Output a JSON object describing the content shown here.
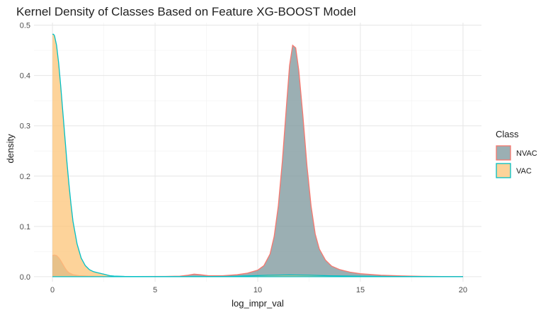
{
  "chart_data": {
    "type": "area",
    "title": "Kernel Density of Classes Based on Feature XG-BOOST Model",
    "xlabel": "log_impr_val",
    "ylabel": "density",
    "xlim": [
      -0.9,
      20.9
    ],
    "ylim": [
      -0.01,
      0.505
    ],
    "x_ticks": [
      0,
      5,
      10,
      15,
      20
    ],
    "y_ticks": [
      0.0,
      0.1,
      0.2,
      0.3,
      0.4,
      0.5
    ],
    "x_tick_labels": [
      "0",
      "5",
      "10",
      "15",
      "20"
    ],
    "y_tick_labels": [
      "0.0",
      "0.1",
      "0.2",
      "0.3",
      "0.4",
      "0.5"
    ],
    "grid": true,
    "legend": {
      "title": "Class",
      "position": "right"
    },
    "series": [
      {
        "name": "NVAC",
        "fill": "#7f999d",
        "line": "#f8766d",
        "points": [
          [
            0,
            0.042
          ],
          [
            0.1,
            0.043
          ],
          [
            0.2,
            0.042
          ],
          [
            0.3,
            0.038
          ],
          [
            0.4,
            0.032
          ],
          [
            0.5,
            0.025
          ],
          [
            0.6,
            0.018
          ],
          [
            0.7,
            0.012
          ],
          [
            0.8,
            0.008
          ],
          [
            1.0,
            0.004
          ],
          [
            1.3,
            0.002
          ],
          [
            1.8,
            0.001
          ],
          [
            2.5,
            0.0005
          ],
          [
            4,
            0.0003
          ],
          [
            5.5,
            0.0005
          ],
          [
            6.2,
            0.001
          ],
          [
            6.6,
            0.003
          ],
          [
            6.9,
            0.005
          ],
          [
            7.2,
            0.004
          ],
          [
            7.6,
            0.002
          ],
          [
            8.3,
            0.002
          ],
          [
            9,
            0.004
          ],
          [
            9.5,
            0.007
          ],
          [
            10,
            0.013
          ],
          [
            10.3,
            0.022
          ],
          [
            10.6,
            0.045
          ],
          [
            10.8,
            0.08
          ],
          [
            11.0,
            0.14
          ],
          [
            11.2,
            0.23
          ],
          [
            11.4,
            0.34
          ],
          [
            11.55,
            0.42
          ],
          [
            11.7,
            0.46
          ],
          [
            11.85,
            0.455
          ],
          [
            12.0,
            0.41
          ],
          [
            12.2,
            0.32
          ],
          [
            12.4,
            0.22
          ],
          [
            12.6,
            0.14
          ],
          [
            12.8,
            0.085
          ],
          [
            13.0,
            0.055
          ],
          [
            13.3,
            0.033
          ],
          [
            13.6,
            0.021
          ],
          [
            14.0,
            0.014
          ],
          [
            14.5,
            0.009
          ],
          [
            15,
            0.006
          ],
          [
            16,
            0.003
          ],
          [
            17,
            0.0015
          ],
          [
            18,
            0.0007
          ],
          [
            19,
            0.0003
          ],
          [
            20,
            0
          ]
        ]
      },
      {
        "name": "VAC",
        "fill": "#fdc77d",
        "line": "#00bfc4",
        "points": [
          [
            0,
            0.482
          ],
          [
            0.05,
            0.482
          ],
          [
            0.1,
            0.479
          ],
          [
            0.2,
            0.46
          ],
          [
            0.3,
            0.425
          ],
          [
            0.4,
            0.38
          ],
          [
            0.5,
            0.33
          ],
          [
            0.6,
            0.28
          ],
          [
            0.7,
            0.23
          ],
          [
            0.8,
            0.185
          ],
          [
            0.9,
            0.145
          ],
          [
            1.0,
            0.11
          ],
          [
            1.2,
            0.065
          ],
          [
            1.4,
            0.037
          ],
          [
            1.6,
            0.022
          ],
          [
            1.8,
            0.014
          ],
          [
            2.0,
            0.01
          ],
          [
            2.2,
            0.008
          ],
          [
            2.4,
            0.006
          ],
          [
            2.6,
            0.004
          ],
          [
            2.8,
            0.002
          ],
          [
            3.0,
            0.0012
          ],
          [
            3.5,
            0.0005
          ],
          [
            4,
            0.0003
          ],
          [
            5,
            0.0002
          ],
          [
            7,
            0.0002
          ],
          [
            8.5,
            0.0006
          ],
          [
            9.5,
            0.0015
          ],
          [
            10.5,
            0.0028
          ],
          [
            11.5,
            0.0035
          ],
          [
            12.5,
            0.003
          ],
          [
            13.5,
            0.0018
          ],
          [
            15,
            0.0008
          ],
          [
            17,
            0.0003
          ],
          [
            20,
            0
          ]
        ]
      }
    ]
  }
}
